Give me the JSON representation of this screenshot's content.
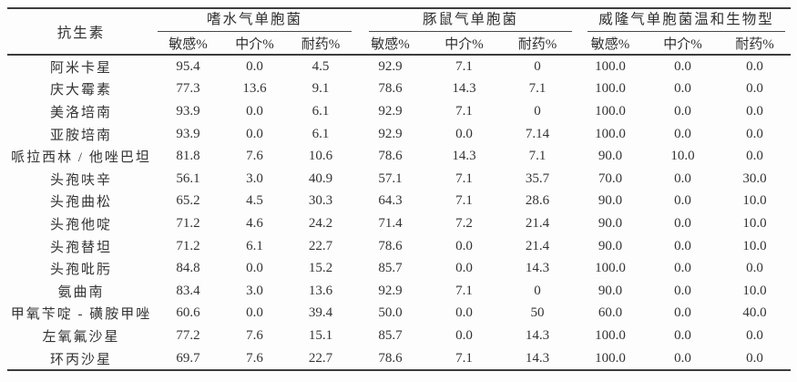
{
  "table": {
    "col1_header": "抗生素",
    "groups": [
      {
        "label": "嗜水气单胞菌"
      },
      {
        "label": "豚鼠气单胞菌"
      },
      {
        "label": "威隆气单胞菌温和生物型"
      }
    ],
    "sub_headers": [
      "敏感%",
      "中介%",
      "耐药%"
    ],
    "rows": [
      {
        "name": "阿米卡星",
        "values": [
          "95.4",
          "0.0",
          "4.5",
          "92.9",
          "7.1",
          "0",
          "100.0",
          "0.0",
          "0.0"
        ]
      },
      {
        "name": "庆大霉素",
        "values": [
          "77.3",
          "13.6",
          "9.1",
          "78.6",
          "14.3",
          "7.1",
          "100.0",
          "0.0",
          "0.0"
        ]
      },
      {
        "name": "美洛培南",
        "values": [
          "93.9",
          "0.0",
          "6.1",
          "92.9",
          "7.1",
          "0",
          "100.0",
          "0.0",
          "0.0"
        ]
      },
      {
        "name": "亚胺培南",
        "values": [
          "93.9",
          "0.0",
          "6.1",
          "92.9",
          "0.0",
          "7.14",
          "100.0",
          "0.0",
          "0.0"
        ]
      },
      {
        "name": "哌拉西林 / 他唑巴坦",
        "values": [
          "81.8",
          "7.6",
          "10.6",
          "78.6",
          "14.3",
          "7.1",
          "90.0",
          "10.0",
          "0.0"
        ]
      },
      {
        "name": "头孢呋辛",
        "values": [
          "56.1",
          "3.0",
          "40.9",
          "57.1",
          "7.1",
          "35.7",
          "70.0",
          "0.0",
          "30.0"
        ]
      },
      {
        "name": "头孢曲松",
        "values": [
          "65.2",
          "4.5",
          "30.3",
          "64.3",
          "7.1",
          "28.6",
          "90.0",
          "0.0",
          "10.0"
        ]
      },
      {
        "name": "头孢他啶",
        "values": [
          "71.2",
          "4.6",
          "24.2",
          "71.4",
          "7.2",
          "21.4",
          "90.0",
          "0.0",
          "10.0"
        ]
      },
      {
        "name": "头孢替坦",
        "values": [
          "71.2",
          "6.1",
          "22.7",
          "78.6",
          "0.0",
          "21.4",
          "90.0",
          "0.0",
          "10.0"
        ]
      },
      {
        "name": "头孢吡肟",
        "values": [
          "84.8",
          "0.0",
          "15.2",
          "85.7",
          "0.0",
          "14.3",
          "100.0",
          "0.0",
          "0.0"
        ]
      },
      {
        "name": "氨曲南",
        "values": [
          "83.4",
          "3.0",
          "13.6",
          "92.9",
          "7.1",
          "0",
          "90.0",
          "0.0",
          "10.0"
        ]
      },
      {
        "name": "甲氧苄啶 - 磺胺甲唑",
        "values": [
          "60.6",
          "0.0",
          "39.4",
          "50.0",
          "0.0",
          "50",
          "60.0",
          "0.0",
          "40.0"
        ]
      },
      {
        "name": "左氧氟沙星",
        "values": [
          "77.2",
          "7.6",
          "15.1",
          "85.7",
          "0.0",
          "14.3",
          "100.0",
          "0.0",
          "0.0"
        ]
      },
      {
        "name": "环丙沙星",
        "values": [
          "69.7",
          "7.6",
          "22.7",
          "78.6",
          "7.1",
          "14.3",
          "100.0",
          "0.0",
          "0.0"
        ]
      }
    ]
  },
  "colors": {
    "background": "#fdfdfd",
    "text": "#2e2e2e",
    "rule": "#3d3d3d"
  }
}
